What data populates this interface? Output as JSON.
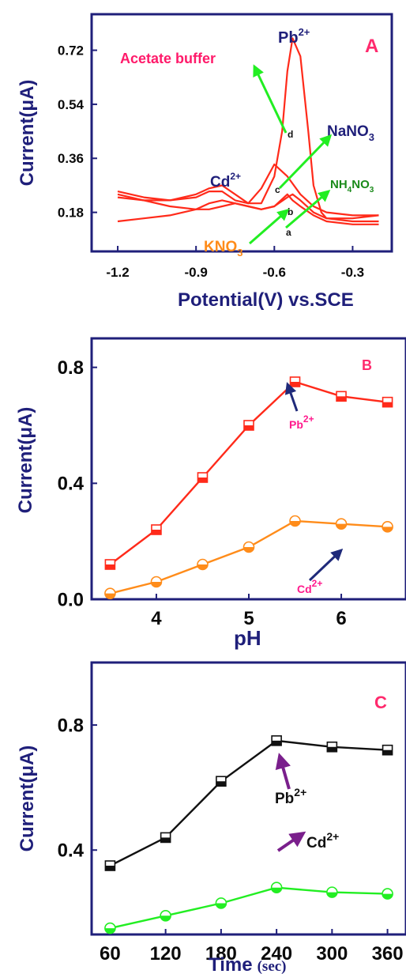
{
  "chart_data": [
    {
      "type": "line",
      "panel_label": "A",
      "xlabel": "Potential(V) vs.SCE",
      "ylabel": "Current(μA)",
      "xlim": [
        -1.3,
        -0.15
      ],
      "ylim": [
        0.05,
        0.84
      ],
      "xticks": [
        "-1.2",
        "-0.9",
        "-0.6",
        "-0.3"
      ],
      "yticks": [
        "0.18",
        "0.36",
        "0.54",
        "0.72"
      ],
      "series": [
        {
          "x": [
            -1.2,
            -1.1,
            -1.0,
            -0.9,
            -0.85,
            -0.8,
            -0.75,
            -0.7,
            -0.65,
            -0.6,
            -0.55,
            -0.53,
            -0.5,
            -0.45,
            -0.4,
            -0.3,
            -0.2
          ],
          "y": [
            0.15,
            0.16,
            0.17,
            0.19,
            0.21,
            0.22,
            0.21,
            0.2,
            0.19,
            0.2,
            0.24,
            0.22,
            0.2,
            0.17,
            0.15,
            0.14,
            0.14
          ]
        },
        {
          "x": [
            -1.2,
            -1.1,
            -1.0,
            -0.9,
            -0.85,
            -0.8,
            -0.75,
            -0.7,
            -0.65,
            -0.6,
            -0.55,
            -0.53,
            -0.5,
            -0.45,
            -0.4,
            -0.3,
            -0.2
          ],
          "y": [
            0.24,
            0.22,
            0.2,
            0.19,
            0.19,
            0.2,
            0.21,
            0.2,
            0.19,
            0.2,
            0.23,
            0.24,
            0.22,
            0.18,
            0.16,
            0.15,
            0.15
          ]
        },
        {
          "x": [
            -1.2,
            -1.1,
            -1.0,
            -0.9,
            -0.85,
            -0.8,
            -0.75,
            -0.7,
            -0.65,
            -0.6,
            -0.55,
            -0.5,
            -0.45,
            -0.4,
            -0.3,
            -0.2
          ],
          "y": [
            0.23,
            0.22,
            0.22,
            0.23,
            0.25,
            0.25,
            0.22,
            0.21,
            0.26,
            0.34,
            0.3,
            0.24,
            0.2,
            0.18,
            0.17,
            0.17
          ]
        },
        {
          "x": [
            -1.2,
            -1.1,
            -1.0,
            -0.9,
            -0.85,
            -0.8,
            -0.75,
            -0.7,
            -0.65,
            -0.6,
            -0.57,
            -0.55,
            -0.53,
            -0.5,
            -0.47,
            -0.45,
            -0.42,
            -0.4,
            -0.3,
            -0.2
          ],
          "y": [
            0.25,
            0.23,
            0.22,
            0.24,
            0.26,
            0.27,
            0.24,
            0.21,
            0.21,
            0.3,
            0.45,
            0.65,
            0.76,
            0.7,
            0.45,
            0.27,
            0.18,
            0.16,
            0.16,
            0.17
          ]
        }
      ],
      "annotations": [
        {
          "text": "Pb",
          "sup": "2+"
        },
        {
          "text": "Acetate buffer"
        },
        {
          "text": "NaNO",
          "sub": "3"
        },
        {
          "text": "Cd",
          "sup": "2+"
        },
        {
          "text": "NH",
          "sub": "4",
          "rest": "NO",
          "sub2": "3"
        },
        {
          "text": "KNO",
          "sub": "3"
        },
        {
          "text": "a"
        },
        {
          "text": "b"
        },
        {
          "text": "c"
        },
        {
          "text": "d"
        }
      ]
    },
    {
      "type": "line",
      "panel_label": "B",
      "xlabel": "pH",
      "ylabel": "Current(μA)",
      "xlim": [
        3.3,
        6.7
      ],
      "ylim": [
        0.0,
        0.9
      ],
      "xticks": [
        "4",
        "5",
        "6"
      ],
      "yticks": [
        "0.0",
        "0.4",
        "0.8"
      ],
      "x": [
        3.5,
        4.0,
        4.5,
        5.0,
        5.5,
        6.0,
        6.5
      ],
      "series": [
        {
          "values": [
            0.12,
            0.24,
            0.42,
            0.6,
            0.75,
            0.7,
            0.68
          ]
        },
        {
          "values": [
            0.02,
            0.06,
            0.12,
            0.18,
            0.27,
            0.26,
            0.25
          ]
        }
      ],
      "annotations": [
        {
          "text": "Pb",
          "sup": "2+"
        },
        {
          "text": "Cd",
          "sup": "2+"
        }
      ]
    },
    {
      "type": "line",
      "panel_label": "C",
      "xlabel": "Time",
      "xlabel_unit": "(sec)",
      "ylabel": "Current(μA)",
      "xlim": [
        40,
        380
      ],
      "ylim": [
        0.13,
        1.0
      ],
      "xticks": [
        "60",
        "120",
        "180",
        "240",
        "300",
        "360"
      ],
      "yticks": [
        "0.4",
        "0.8"
      ],
      "x": [
        60,
        120,
        180,
        240,
        300,
        360
      ],
      "series": [
        {
          "values": [
            0.35,
            0.44,
            0.62,
            0.75,
            0.73,
            0.72
          ]
        },
        {
          "values": [
            0.15,
            0.19,
            0.23,
            0.28,
            0.265,
            0.26
          ]
        }
      ],
      "annotations": [
        {
          "text": "Pb",
          "sup": "2+"
        },
        {
          "text": "Cd",
          "sup": "2+"
        }
      ]
    }
  ],
  "colors": {
    "frame": "#1f1f7a",
    "panel_label": "#ff2a6d",
    "red": "#ff2a1a",
    "orange": "#ff8c1a",
    "black": "#111111",
    "green": "#22ee22",
    "navy_arrow": "#1f2a7a",
    "purple_arrow": "#7a1f8c",
    "acetate": "#ff1a6a",
    "nano3": "#1f1f7a",
    "nh4no3": "#1a8a1a",
    "kno3": "#ff8c1a",
    "pink_label": "#ff1a8c"
  }
}
